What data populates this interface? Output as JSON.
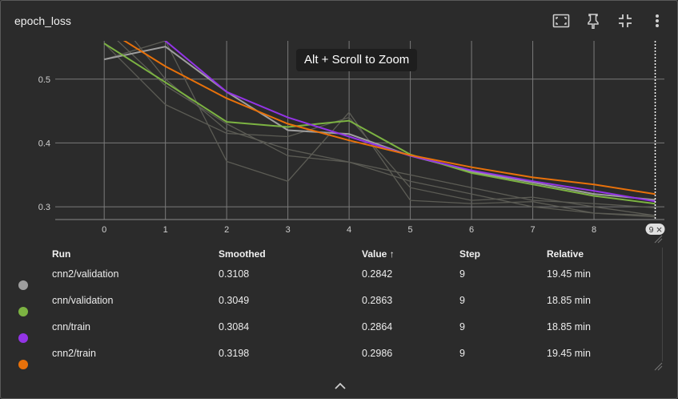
{
  "title": "epoch_loss",
  "tooltip": "Alt + Scroll to Zoom",
  "toolbar": [
    "fit-to-data-icon",
    "pin-icon",
    "collapse-card-icon",
    "more-vert-icon"
  ],
  "step_marker": "9",
  "table": {
    "headers": {
      "run": "Run",
      "smoothed": "Smoothed",
      "value": "Value ↑",
      "step": "Step",
      "relative": "Relative"
    },
    "rows": [
      {
        "color": "#9e9e9e",
        "run": "cnn2/validation",
        "smoothed": "0.3108",
        "value": "0.2842",
        "step": "9",
        "relative": "19.45 min"
      },
      {
        "color": "#7cb342",
        "run": "cnn/validation",
        "smoothed": "0.3049",
        "value": "0.2863",
        "step": "9",
        "relative": "18.85 min"
      },
      {
        "color": "#9334e6",
        "run": "cnn/train",
        "smoothed": "0.3084",
        "value": "0.2864",
        "step": "9",
        "relative": "18.85 min"
      },
      {
        "color": "#e8710a",
        "run": "cnn2/train",
        "smoothed": "0.3198",
        "value": "0.2986",
        "step": "9",
        "relative": "19.45 min"
      }
    ]
  },
  "chart_data": {
    "type": "line",
    "x": [
      0,
      1,
      2,
      3,
      4,
      5,
      6,
      7,
      8,
      9
    ],
    "xticks": [
      "0",
      "1",
      "2",
      "3",
      "4",
      "5",
      "6",
      "7",
      "8"
    ],
    "yticks": [
      "0.3",
      "0.4",
      "0.5"
    ],
    "xlim": [
      -0.8,
      9.15
    ],
    "ylim": [
      0.28,
      0.56
    ],
    "grid": true,
    "smoothed_series": [
      {
        "name": "cnn2/validation",
        "color": "#9e9e9e",
        "values": [
          0.531,
          0.551,
          0.48,
          0.42,
          0.414,
          0.38,
          0.355,
          0.338,
          0.32,
          0.3108
        ]
      },
      {
        "name": "cnn/validation",
        "color": "#7cb342",
        "values": [
          0.556,
          0.495,
          0.433,
          0.425,
          0.435,
          0.382,
          0.353,
          0.335,
          0.317,
          0.3049
        ]
      },
      {
        "name": "cnn/train",
        "color": "#9334e6",
        "values": [
          0.62,
          0.56,
          0.48,
          0.44,
          0.41,
          0.38,
          0.357,
          0.34,
          0.325,
          0.3084
        ]
      },
      {
        "name": "cnn2/train",
        "color": "#e8710a",
        "values": [
          0.58,
          0.52,
          0.47,
          0.43,
          0.404,
          0.381,
          0.362,
          0.346,
          0.335,
          0.3198
        ]
      }
    ],
    "raw_series": [
      {
        "name": "cnn2/validation",
        "values": [
          0.531,
          0.56,
          0.371,
          0.34,
          0.448,
          0.31,
          0.305,
          0.308,
          0.29,
          0.2842
        ]
      },
      {
        "name": "cnn/validation",
        "values": [
          0.556,
          0.46,
          0.415,
          0.41,
          0.44,
          0.33,
          0.31,
          0.315,
          0.3,
          0.2863
        ]
      },
      {
        "name": "cnn/train",
        "values": [
          0.62,
          0.5,
          0.42,
          0.39,
          0.37,
          0.34,
          0.32,
          0.3,
          0.29,
          0.2864
        ]
      },
      {
        "name": "cnn2/train",
        "values": [
          0.58,
          0.49,
          0.43,
          0.38,
          0.37,
          0.35,
          0.33,
          0.31,
          0.305,
          0.2986
        ]
      }
    ]
  }
}
